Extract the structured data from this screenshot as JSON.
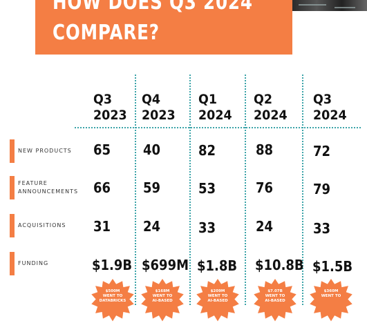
{
  "title": {
    "line1": "HOW DOES Q3 2024",
    "line2": "COMPARE?"
  },
  "columns": [
    {
      "quarter": "Q3",
      "year": "2023"
    },
    {
      "quarter": "Q4",
      "year": "2023"
    },
    {
      "quarter": "Q1",
      "year": "2024"
    },
    {
      "quarter": "Q2",
      "year": "2024"
    },
    {
      "quarter": "Q3",
      "year": "2024"
    }
  ],
  "rows": [
    {
      "label": [
        "NEW PRODUCTS"
      ],
      "values": [
        "65",
        "40",
        "82",
        "88",
        "72"
      ]
    },
    {
      "label": [
        "FEATURE",
        "ANNOUNCEMENTS"
      ],
      "values": [
        "66",
        "59",
        "53",
        "76",
        "79"
      ]
    },
    {
      "label": [
        "ACQUISITIONS"
      ],
      "values": [
        "31",
        "24",
        "33",
        "24",
        "33"
      ]
    },
    {
      "label": [
        "FUNDING"
      ],
      "values": [
        "$1.9B",
        "$699M",
        "$1.8B",
        "$10.8B",
        "$1.5B"
      ]
    }
  ],
  "badges": [
    [
      "$500M",
      "WENT TO",
      "DATABRICKS"
    ],
    [
      "$168M",
      "WENT TO",
      "AI-BASED"
    ],
    [
      "$209M",
      "WENT TO",
      "AI-BASED"
    ],
    [
      "$7.07B",
      "WENT TO",
      "AI-BASED"
    ],
    [
      "$360M",
      "WENT TO",
      ""
    ]
  ],
  "colors": {
    "accent": "#f47e44",
    "divider": "#3aa3a8",
    "text": "#111111"
  }
}
